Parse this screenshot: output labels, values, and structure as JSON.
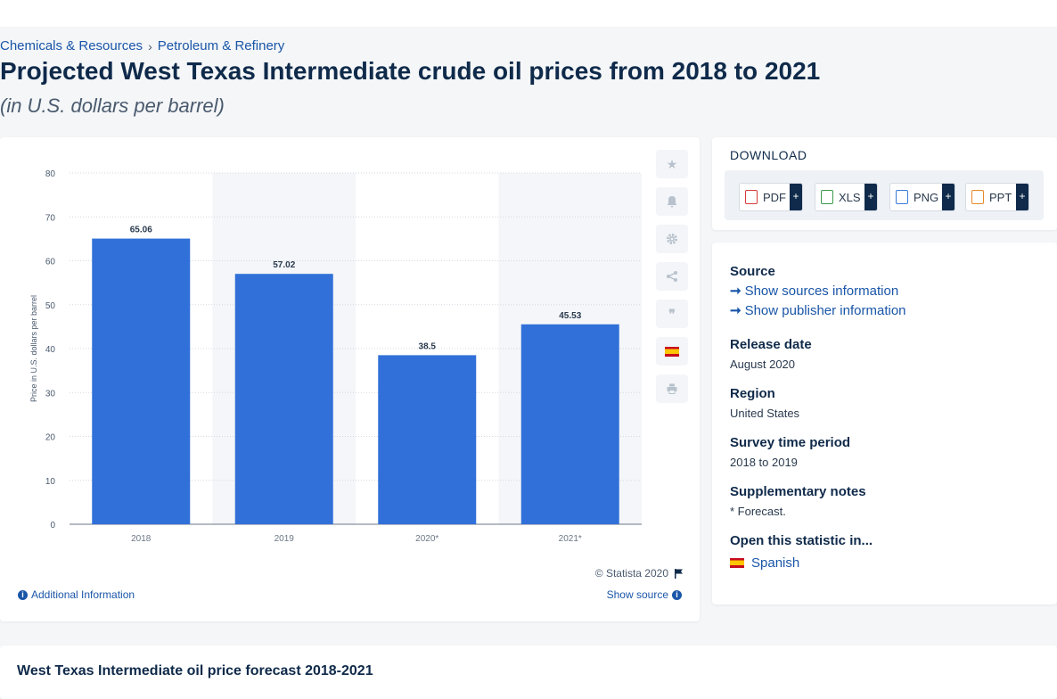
{
  "breadcrumb": [
    "Chemicals & Resources",
    "Petroleum & Refinery"
  ],
  "breadcrumb_sep": "›",
  "title": "Projected West Texas Intermediate crude oil prices from 2018 to 2021",
  "subtitle": "(in U.S. dollars per barrel)",
  "chart_data": {
    "type": "bar",
    "categories": [
      "2018",
      "2019",
      "2020*",
      "2021*"
    ],
    "values": [
      65.06,
      57.02,
      38.5,
      45.53
    ],
    "value_labels": [
      "65.06",
      "57.02",
      "38.5",
      "45.53"
    ],
    "ylabel": "Price in U.S. dollars per barrel",
    "ylim": [
      0,
      80
    ],
    "yticks": [
      0,
      10,
      20,
      30,
      40,
      50,
      60,
      70,
      80
    ],
    "grid": true,
    "bar_color": "#3170d8"
  },
  "side_icons": [
    "star-icon",
    "bell-icon",
    "gear-icon",
    "share-icon",
    "quote-icon",
    "spain-flag-icon",
    "print-icon"
  ],
  "copyright": "© Statista 2020",
  "additional_info": "Additional Information",
  "show_source": "Show source",
  "download": {
    "title": "DOWNLOAD",
    "buttons": [
      {
        "label": "PDF",
        "color": "#d83a3a"
      },
      {
        "label": "XLS",
        "color": "#3a9a4a"
      },
      {
        "label": "PNG",
        "color": "#3a7ad8"
      },
      {
        "label": "PPT",
        "color": "#e8892a"
      }
    ],
    "plus": "+"
  },
  "info": {
    "source_label": "Source",
    "show_sources": "Show sources information",
    "show_publisher": "Show publisher information",
    "release_label": "Release date",
    "release_value": "August 2020",
    "region_label": "Region",
    "region_value": "United States",
    "survey_label": "Survey time period",
    "survey_value": "2018 to 2019",
    "notes_label": "Supplementary notes",
    "notes_value": "* Forecast.",
    "open_label": "Open this statistic in...",
    "open_lang": "Spanish"
  },
  "bottom_title": "West Texas Intermediate oil price forecast 2018-2021"
}
